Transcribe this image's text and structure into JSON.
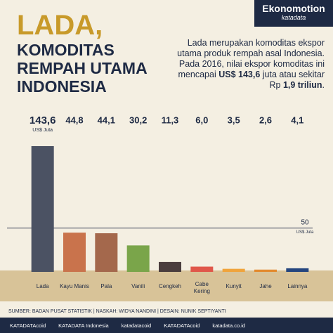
{
  "brand": {
    "name": "Ekonomotion",
    "sub": "katadata"
  },
  "chart_data": {
    "type": "bar",
    "title": "LADA,",
    "subtitle": "KOMODITAS REMPAH UTAMA INDONESIA",
    "description": [
      "Lada merupakan komoditas ekspor utama produk rempah asal Indonesia. Pada 2016, nilai ekspor komoditas ini mencapai ",
      "US$ 143,6",
      " juta atau sekitar Rp ",
      "1,9 triliun",
      "."
    ],
    "categories": [
      "Lada",
      "Kayu Manis",
      "Pala",
      "Vanili",
      "Cengkeh",
      "Cabe Kering",
      "Kunyit",
      "Jahe",
      "Lainnya"
    ],
    "values": [
      143.6,
      44.8,
      44.1,
      30.2,
      11.3,
      6.0,
      3.5,
      2.6,
      4.1
    ],
    "value_labels": [
      "143,6",
      "44,8",
      "44,1",
      "30,2",
      "11,3",
      "6,0",
      "3,5",
      "2,6",
      "4,1"
    ],
    "value_unit": "US$ Juta",
    "colors": [
      "#4b5263",
      "#c9734c",
      "#a4684c",
      "#7aa54a",
      "#4a3d3d",
      "#e0574a",
      "#f0a43c",
      "#e38a2e",
      "#24457e"
    ],
    "ylim": [
      0,
      150
    ],
    "yticks": [
      50
    ],
    "y_unit": "US$ Juta"
  },
  "footer": {
    "source": "SUMBER: BADAN PUSAT STATISTIK | NASKAH: WIDYA NANDINI | DESAIN: NUNIK SEPTIYANTI",
    "social": [
      "KATADATAcoid",
      "KATADATA Indonesia",
      "katadatacoid",
      "KATADATAcoid",
      "katadata.co.id"
    ]
  }
}
